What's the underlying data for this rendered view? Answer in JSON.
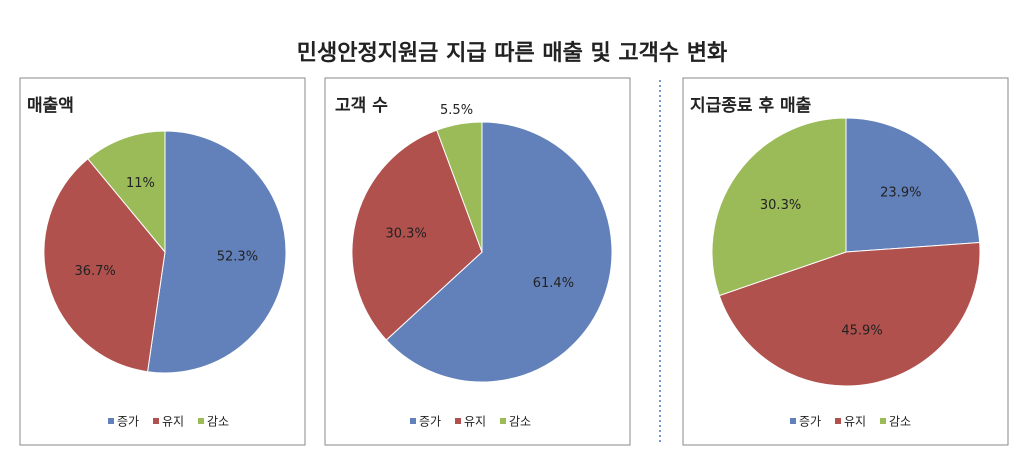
{
  "title": "민생안정지원금 지급 따른 매출 및 고객수 변화",
  "chart_data": [
    {
      "type": "pie",
      "title": "매출액",
      "categories": [
        "증가",
        "유지",
        "감소"
      ],
      "colors": [
        "#6281bb",
        "#b0514d",
        "#9bbb59"
      ],
      "values": [
        52.3,
        36.7,
        11
      ],
      "value_labels": [
        "52.3%",
        "36.7%",
        "11%"
      ]
    },
    {
      "type": "pie",
      "title": "고객 수",
      "categories": [
        "증가",
        "유지",
        "감소"
      ],
      "colors": [
        "#6281bb",
        "#b0514d",
        "#9bbb59"
      ],
      "values": [
        61.4,
        30.3,
        5.5
      ],
      "value_labels": [
        "61.4%",
        "30.3%",
        "5.5%"
      ]
    },
    {
      "type": "pie",
      "title": "지급종료 후 매출",
      "categories": [
        "증가",
        "유지",
        "감소"
      ],
      "colors": [
        "#6281bb",
        "#b0514d",
        "#9bbb59"
      ],
      "values": [
        23.9,
        45.9,
        30.3
      ],
      "value_labels": [
        "23.9%",
        "45.9%",
        "30.3%"
      ]
    }
  ]
}
